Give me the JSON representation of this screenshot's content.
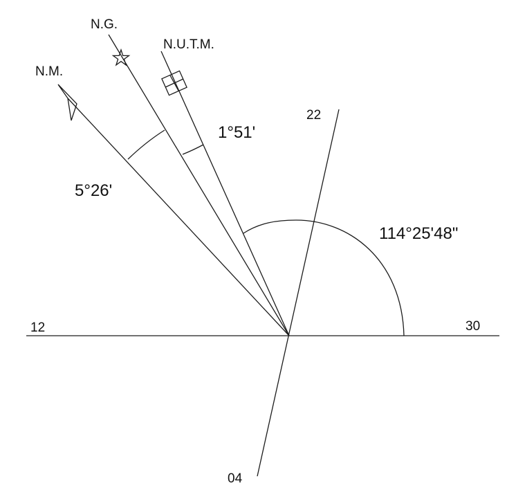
{
  "north_labels": {
    "magnetic": "N.M.",
    "geographic": "N.G.",
    "utm": "N.U.T.M."
  },
  "runway_labels": {
    "west": "12",
    "east": "30",
    "north": "22",
    "south": "04"
  },
  "angles": {
    "magnetic_declination": "5°26'",
    "grid_convergence": "1°51'",
    "runway_bearing": "114°25'48\""
  },
  "icons": {
    "geographic_north": "star-icon",
    "utm_north": "grid-square-icon",
    "magnetic_north": "lightning-arrow-icon"
  }
}
